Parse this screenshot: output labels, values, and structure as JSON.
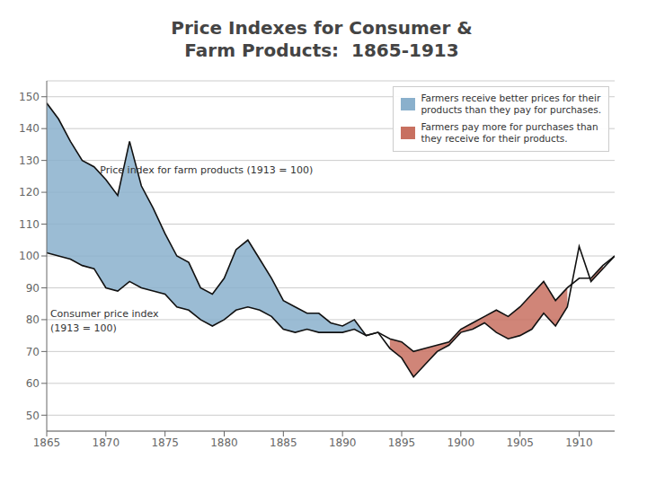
{
  "chart_data": {
    "type": "line",
    "title": "Price Indexes for Consumer &\nFarm Products:  1865-1913",
    "x": [
      1865,
      1866,
      1867,
      1868,
      1869,
      1870,
      1871,
      1872,
      1873,
      1874,
      1875,
      1876,
      1877,
      1878,
      1879,
      1880,
      1881,
      1882,
      1883,
      1884,
      1885,
      1886,
      1887,
      1888,
      1889,
      1890,
      1891,
      1892,
      1893,
      1894,
      1895,
      1896,
      1897,
      1898,
      1899,
      1900,
      1901,
      1902,
      1903,
      1904,
      1905,
      1906,
      1907,
      1908,
      1909,
      1910,
      1911,
      1912,
      1913
    ],
    "series": [
      {
        "color": "#111111",
        "values": [
          148,
          143,
          136,
          130,
          128,
          124,
          119,
          136,
          122,
          115,
          107,
          100,
          98,
          90,
          88,
          93,
          102,
          105,
          99,
          93,
          86,
          84,
          82,
          82,
          79,
          78,
          80,
          75,
          76,
          71,
          68,
          62,
          66,
          70,
          72,
          76,
          77,
          79,
          76,
          74,
          75,
          77,
          82,
          78,
          84,
          103,
          92,
          96,
          100
        ]
      },
      {
        "color": "#111111",
        "values": [
          101,
          100,
          99,
          97,
          96,
          90,
          89,
          92,
          90,
          89,
          88,
          84,
          83,
          80,
          78,
          80,
          83,
          84,
          83,
          81,
          77,
          76,
          77,
          76,
          76,
          76,
          77,
          75,
          76,
          74,
          73,
          70,
          71,
          72,
          73,
          77,
          79,
          81,
          83,
          81,
          84,
          88,
          92,
          86,
          90,
          93,
          93,
          97,
          100
        ]
      }
    ],
    "fills": [
      {
        "name": "Farmers receive better prices for their\nproducts than they pay for purchases.",
        "color": "#8ab0cc"
      },
      {
        "name": "Farmers pay more for purchases than\nthey receive for their products.",
        "color": "#c87060"
      }
    ],
    "annotations": [
      {
        "text": "Price index for farm products (1913 = 100)",
        "x": 1869.5,
        "y": 127
      },
      {
        "text": "Consumer price index",
        "x": 1865.3,
        "y": 82
      },
      {
        "text": "(1913 = 100)",
        "x": 1865.3,
        "y": 77.5
      }
    ],
    "xlim": [
      1865,
      1913
    ],
    "ylim": [
      45,
      155
    ],
    "xticks": [
      1865,
      1870,
      1875,
      1880,
      1885,
      1890,
      1895,
      1900,
      1905,
      1910
    ],
    "yticks": [
      50,
      60,
      70,
      80,
      90,
      100,
      110,
      120,
      130,
      140,
      150
    ],
    "grid": true,
    "legend": "upper right"
  }
}
